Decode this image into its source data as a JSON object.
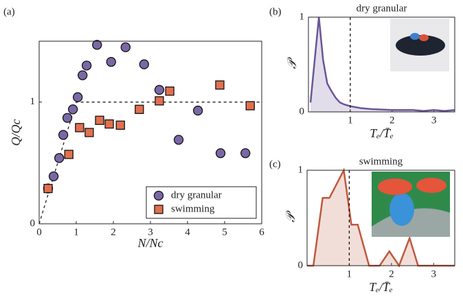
{
  "chart_data": [
    {
      "type": "scatter",
      "label": "(a)",
      "xlabel": "N/Nc",
      "ylabel": "Q/Qc",
      "xlim": [
        0,
        6
      ],
      "ylim": [
        0,
        1.5
      ],
      "xticks": [
        0,
        1,
        2,
        3,
        4,
        5,
        6
      ],
      "yticks": [
        0,
        1
      ],
      "legend": "lower right",
      "reference_line": {
        "x": [
          0,
          1,
          6
        ],
        "y": [
          0,
          1,
          1
        ]
      },
      "series": [
        {
          "name": "dry granular",
          "color": "#7a68a6",
          "marker": "circle",
          "x": [
            0.24,
            0.39,
            0.54,
            0.65,
            0.76,
            0.91,
            1.04,
            1.17,
            1.28,
            1.56,
            1.94,
            2.33,
            2.83,
            3.24,
            3.76,
            4.28,
            4.89,
            5.56
          ],
          "values": [
            0.29,
            0.39,
            0.54,
            0.73,
            0.87,
            0.94,
            1.04,
            1.22,
            1.3,
            1.47,
            1.33,
            1.45,
            1.31,
            1.1,
            0.69,
            0.93,
            0.58,
            0.58
          ]
        },
        {
          "name": "swimming",
          "color": "#e2704f",
          "marker": "square",
          "x": [
            0.24,
            0.8,
            1.09,
            1.35,
            1.63,
            1.89,
            2.19,
            2.7,
            3.24,
            3.52,
            4.87,
            5.69
          ],
          "values": [
            0.29,
            0.57,
            0.79,
            0.75,
            0.85,
            0.82,
            0.81,
            0.94,
            1.01,
            1.09,
            1.14,
            0.97
          ]
        }
      ]
    },
    {
      "type": "area",
      "label": "(b)",
      "title": "dry granular",
      "xlabel": "Tₑ/T̄ₑ",
      "ylabel": "𝒫",
      "xlim": [
        0,
        3.5
      ],
      "ylim": [
        0,
        1
      ],
      "xticks": [
        1,
        2,
        3
      ],
      "yticks": [
        0,
        1
      ],
      "vline": 1,
      "color": "#6b5597",
      "x": [
        0.05,
        0.25,
        0.35,
        0.45,
        0.55,
        0.65,
        0.75,
        0.85,
        1.0,
        1.25,
        1.5,
        2.0,
        2.5,
        2.75,
        3.0,
        3.25,
        3.5
      ],
      "values": [
        0.1,
        1.0,
        0.55,
        0.3,
        0.22,
        0.15,
        0.1,
        0.08,
        0.06,
        0.04,
        0.03,
        0.02,
        0.02,
        0.01,
        0.02,
        0.01,
        0.02
      ]
    },
    {
      "type": "area",
      "label": "(c)",
      "title": "swimming",
      "xlabel": "Tₑ/T̄ₑ",
      "ylabel": "𝒫",
      "xlim": [
        0,
        3.5
      ],
      "ylim": [
        0,
        1
      ],
      "xticks": [
        1,
        2,
        3
      ],
      "yticks": [
        0,
        1
      ],
      "vline": 1,
      "color": "#c0583c",
      "x": [
        0,
        0.15,
        0.37,
        0.53,
        0.87,
        1.05,
        1.2,
        1.47,
        1.72,
        1.95,
        2.18,
        2.43,
        2.63,
        3.5
      ],
      "values": [
        0,
        0,
        0.71,
        0.71,
        1.0,
        0.43,
        0.43,
        0,
        0,
        0.15,
        0,
        0.29,
        0,
        0
      ]
    }
  ]
}
